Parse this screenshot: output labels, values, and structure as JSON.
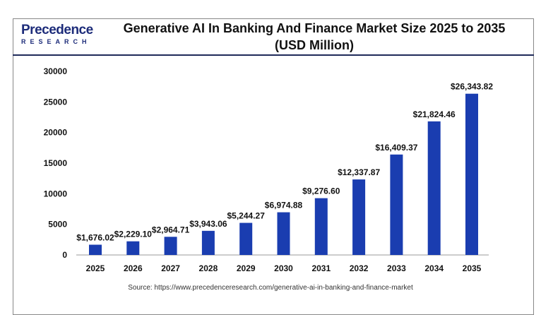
{
  "logo": {
    "line1": "Precedence",
    "line2": "RESEARCH"
  },
  "chart_data": {
    "type": "bar",
    "title": "Generative AI In Banking And Finance Market Size 2025 to 2035",
    "subtitle": "(USD Million)",
    "categories": [
      "2025",
      "2026",
      "2027",
      "2028",
      "2029",
      "2030",
      "2031",
      "2032",
      "2033",
      "2034",
      "2035"
    ],
    "values": [
      1676.02,
      2229.1,
      2964.71,
      3943.06,
      5244.27,
      6974.88,
      9276.6,
      12337.87,
      16409.37,
      21824.46,
      26343.82
    ],
    "labels": [
      "$1,676.02",
      "$2,229.10",
      "$2,964.71",
      "$3,943.06",
      "$5,244.27",
      "$6,974.88",
      "$9,276.60",
      "$12,337.87",
      "$16,409.37",
      "$21,824.46",
      "$26,343.82"
    ],
    "ylim": [
      0,
      30000
    ],
    "yticks": [
      "0",
      "5000",
      "10000",
      "15000",
      "20000",
      "25000",
      "30000"
    ],
    "bar_color": "#1a3db0",
    "grid": false
  },
  "source": "Source: https://www.precedenceresearch.com/generative-ai-in-banking-and-finance-market"
}
